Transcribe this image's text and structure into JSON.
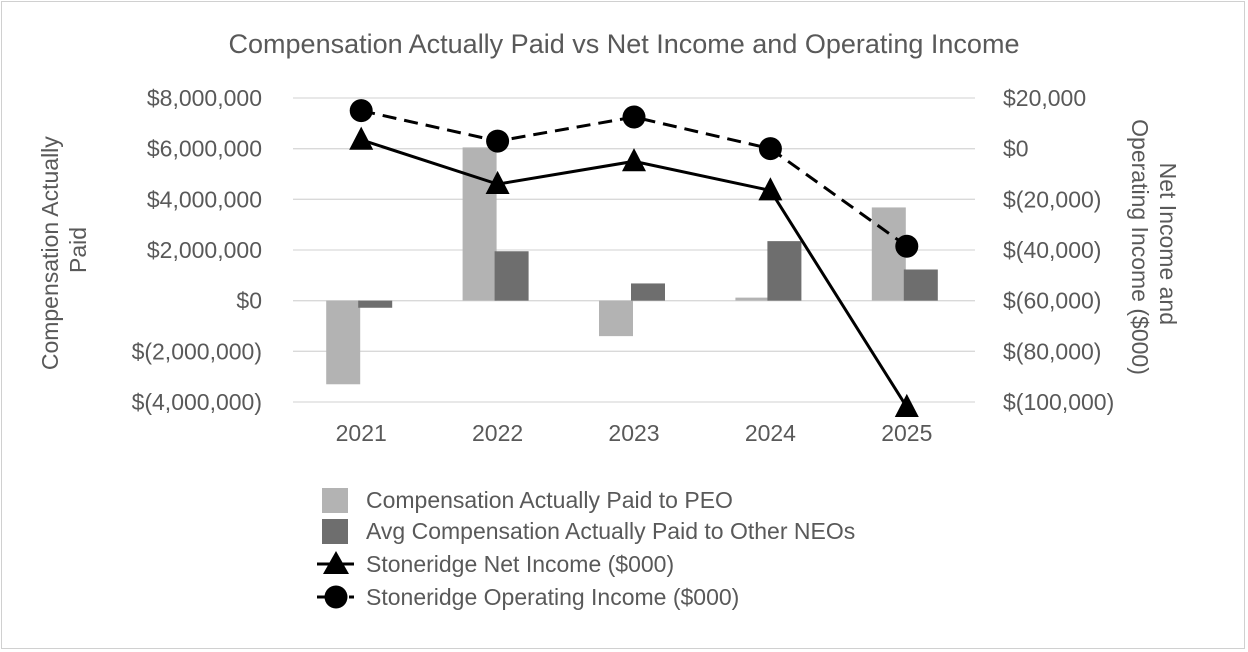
{
  "chart_data": {
    "type": "bar",
    "title": "Compensation Actually Paid vs Net Income and Operating Income",
    "categories": [
      "2021",
      "2022",
      "2023",
      "2024",
      "2025"
    ],
    "y_left": {
      "label": "Compensation Actually Paid",
      "ylim": [
        -4000000,
        8000000
      ],
      "ticks": [
        "$8,000,000",
        "$6,000,000",
        "$4,000,000",
        "$2,000,000",
        "$0",
        "$(2,000,000)",
        "$(4,000,000)"
      ],
      "tick_values": [
        8000000,
        6000000,
        4000000,
        2000000,
        0,
        -2000000,
        -4000000
      ]
    },
    "y_right": {
      "label": "Net Income and Operating Income ($000)",
      "ylim": [
        -100000,
        20000
      ],
      "ticks": [
        "$20,000",
        "$0",
        "$(20,000)",
        "$(40,000)",
        "$(60,000)",
        "$(80,000)",
        "$(100,000)"
      ],
      "tick_values": [
        20000,
        0,
        -20000,
        -40000,
        -60000,
        -80000,
        -100000
      ]
    },
    "grid": true,
    "legend_position": "bottom",
    "series": [
      {
        "name": "Compensation Actually Paid to PEO",
        "kind": "bar",
        "axis": "left",
        "color": "#b3b3b3",
        "values": [
          -3300000,
          6050000,
          -1400000,
          120000,
          3680000
        ]
      },
      {
        "name": "Avg Compensation Actually Paid to Other NEOs",
        "kind": "bar",
        "axis": "left",
        "color": "#6e6e6e",
        "values": [
          -280000,
          1950000,
          680000,
          2350000,
          1230000
        ]
      },
      {
        "name": "Stoneridge Net Income ($000)",
        "kind": "line",
        "axis": "right",
        "color": "#000000",
        "marker": "triangle",
        "dash": false,
        "values": [
          3500,
          -14000,
          -5000,
          -16500,
          -102000
        ]
      },
      {
        "name": "Stoneridge Operating Income ($000)",
        "kind": "line",
        "axis": "right",
        "color": "#000000",
        "marker": "circle",
        "dash": true,
        "values": [
          15000,
          3000,
          12500,
          0,
          -38500
        ]
      }
    ]
  }
}
